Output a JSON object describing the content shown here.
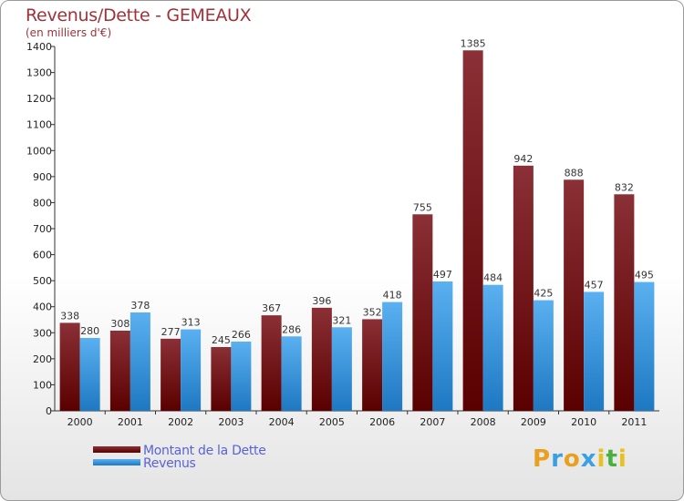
{
  "title": "Revenus/Dette - GEMEAUX",
  "subtitle": "(en milliers d'€)",
  "colors": {
    "dette_top": "#8a3036",
    "dette_bottom": "#5a0000",
    "revenus_top": "#5ab0f0",
    "revenus_bottom": "#1e78c2",
    "title": "#a03238",
    "legend_text": "#5a62d8"
  },
  "logo": {
    "text": "Proxiti",
    "letters": [
      {
        "char": "P",
        "color": "#e8a020"
      },
      {
        "char": "r",
        "color": "#3aa0e0"
      },
      {
        "char": "o",
        "color": "#e8a020"
      },
      {
        "char": "x",
        "color": "#3aa0e0"
      },
      {
        "char": "i",
        "color": "#e8c020"
      },
      {
        "char": "t",
        "color": "#4ab040"
      },
      {
        "char": "i",
        "color": "#e8c020"
      }
    ]
  },
  "chart_data": {
    "type": "bar",
    "categories": [
      "2000",
      "2001",
      "2002",
      "2003",
      "2004",
      "2005",
      "2006",
      "2007",
      "2008",
      "2009",
      "2010",
      "2011"
    ],
    "series": [
      {
        "name": "Montant de la Dette",
        "values": [
          338,
          308,
          277,
          245,
          367,
          396,
          352,
          755,
          1385,
          942,
          888,
          832
        ]
      },
      {
        "name": "Revenus",
        "values": [
          280,
          378,
          313,
          266,
          286,
          321,
          418,
          497,
          484,
          425,
          457,
          495
        ]
      }
    ],
    "ylim": [
      0,
      1400
    ],
    "yticks": [
      0,
      100,
      200,
      300,
      400,
      500,
      600,
      700,
      800,
      900,
      1000,
      1100,
      1200,
      1300,
      1400
    ],
    "legend_position": "bottom-left",
    "grid": false
  }
}
